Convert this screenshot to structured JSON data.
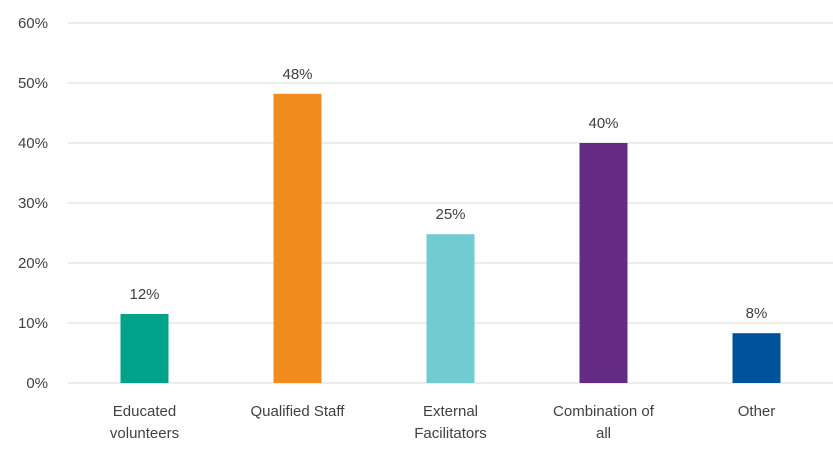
{
  "chart_data": {
    "type": "bar",
    "title": "",
    "xlabel": "",
    "ylabel": "",
    "categories": [
      [
        "Educated",
        "volunteers"
      ],
      [
        "Qualified Staff"
      ],
      [
        "External",
        "Facilitators"
      ],
      [
        "Combination of",
        "all"
      ],
      [
        "Other"
      ]
    ],
    "values": [
      12,
      48,
      25,
      40,
      8
    ],
    "data_labels": [
      "12%",
      "48%",
      "25%",
      "40%",
      "8%"
    ],
    "plotted_values": [
      11.5,
      48.2,
      24.8,
      40.0,
      8.3
    ],
    "colors": [
      "#00A28A",
      "#F08C1E",
      "#72CBD1",
      "#652B84",
      "#00539A"
    ],
    "ylim": [
      0,
      60
    ],
    "yticks": [
      0,
      10,
      20,
      30,
      40,
      50,
      60
    ],
    "ytick_labels": [
      "0%",
      "10%",
      "20%",
      "30%",
      "40%",
      "50%",
      "60%"
    ],
    "grid": true,
    "gridline_color": "#D9D9D9",
    "legend": "none"
  }
}
